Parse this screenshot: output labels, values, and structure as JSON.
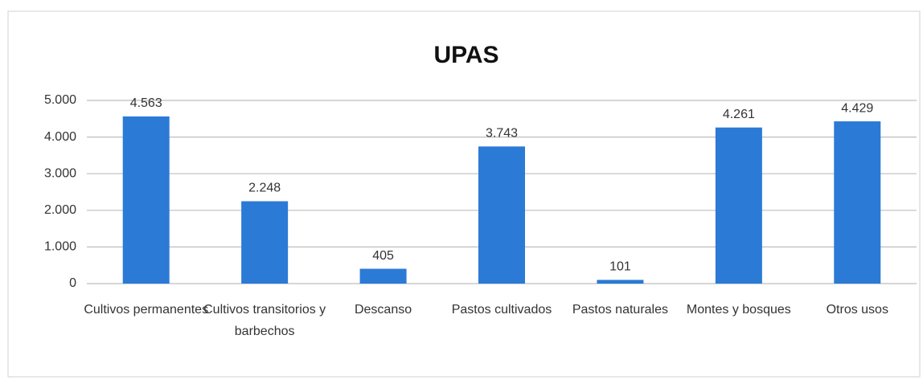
{
  "chart_data": {
    "type": "bar",
    "title": "UPAS",
    "categories": [
      "Cultivos permanentes",
      "Cultivos transitorios y barbechos",
      "Descanso",
      "Pastos cultivados",
      "Pastos naturales",
      "Montes y bosques",
      "Otros usos"
    ],
    "values": [
      4563,
      2248,
      405,
      3743,
      101,
      4261,
      4429
    ],
    "value_labels": [
      "4.563",
      "2.248",
      "405",
      "3.743",
      "101",
      "4.261",
      "4.429"
    ],
    "color": "#2b7ad6",
    "ylim": [
      0,
      5000
    ],
    "yticks": [
      0,
      {
        "value": 1000,
        "label": "1.000"
      },
      {
        "value": 2000,
        "label": "2.000"
      },
      {
        "value": 3000,
        "label": "3.000"
      },
      {
        "value": 4000,
        "label": "4.000"
      },
      {
        "value": 5000,
        "label": "5.000"
      }
    ],
    "grid": true
  }
}
